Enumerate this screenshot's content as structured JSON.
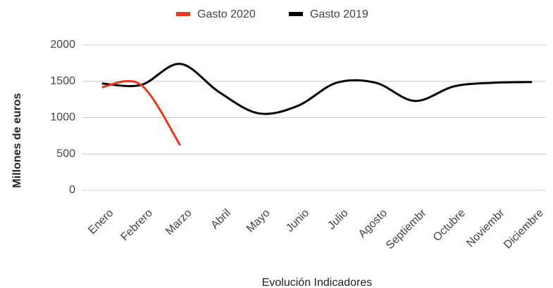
{
  "chart_data": {
    "type": "line",
    "categories": [
      "Enero",
      "Febrero",
      "Marzo",
      "Abril",
      "Mayo",
      "Junio",
      "Julio",
      "Agosto",
      "Septiembr",
      "Octubre",
      "Noviembr",
      "Diciembre"
    ],
    "series": [
      {
        "name": "Gasto 2020",
        "color": "#e8391d",
        "values": [
          1420,
          1450,
          620,
          null,
          null,
          null,
          null,
          null,
          null,
          null,
          null,
          null
        ]
      },
      {
        "name": "Gasto 2019",
        "color": "#000000",
        "values": [
          1470,
          1450,
          1740,
          1350,
          1060,
          1160,
          1480,
          1480,
          1230,
          1430,
          1480,
          1490
        ]
      }
    ],
    "y_label": "Millones de euros",
    "x_label": "Evolución Indicadores",
    "ylim": [
      0,
      2000
    ],
    "yticks": [
      0,
      500,
      1000,
      1500,
      2000
    ],
    "grid": true,
    "legend": "top"
  }
}
